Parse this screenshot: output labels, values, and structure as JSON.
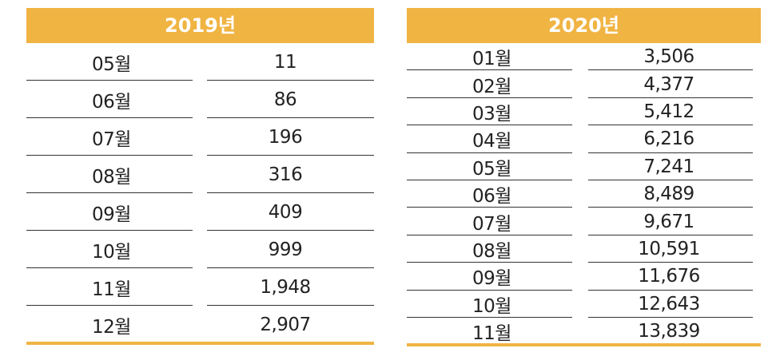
{
  "tables": [
    {
      "year": "2019년",
      "accent_color": "#f0b443",
      "rows": [
        {
          "month": "05월",
          "value": "11"
        },
        {
          "month": "06월",
          "value": "86"
        },
        {
          "month": "07월",
          "value": "196"
        },
        {
          "month": "08월",
          "value": "316"
        },
        {
          "month": "09월",
          "value": "409"
        },
        {
          "month": "10월",
          "value": "999"
        },
        {
          "month": "11월",
          "value": "1,948"
        },
        {
          "month": "12월",
          "value": "2,907"
        }
      ]
    },
    {
      "year": "2020년",
      "accent_color": "#f0b443",
      "rows": [
        {
          "month": "01월",
          "value": "3,506"
        },
        {
          "month": "02월",
          "value": "4,377"
        },
        {
          "month": "03월",
          "value": "5,412"
        },
        {
          "month": "04월",
          "value": "6,216"
        },
        {
          "month": "05월",
          "value": "7,241"
        },
        {
          "month": "06월",
          "value": "8,489"
        },
        {
          "month": "07월",
          "value": "9,671"
        },
        {
          "month": "08월",
          "value": "10,591"
        },
        {
          "month": "09월",
          "value": "11,676"
        },
        {
          "month": "10월",
          "value": "12,643"
        },
        {
          "month": "11월",
          "value": "13,839"
        }
      ]
    }
  ]
}
